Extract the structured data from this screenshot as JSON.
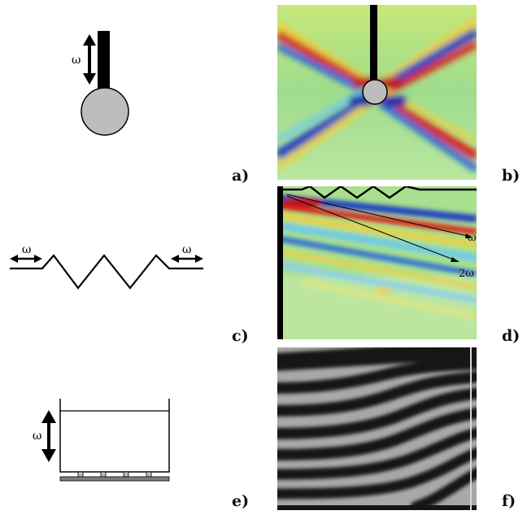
{
  "labels": {
    "a": "a)",
    "b": "b)",
    "c": "c)",
    "d": "d)",
    "e": "e)",
    "f": "f)"
  },
  "symbols": {
    "omega_a": "ω",
    "omega_c_left": "ω",
    "omega_c_right": "ω",
    "omega_e": "ω",
    "ray_omega": "ω",
    "ray_2omega": "2ω"
  },
  "colors": {
    "background_field": "#b3e58c",
    "positive": "#d52b1e",
    "negative": "#1f3fbf",
    "cylinder_fill": "#bdbdbd",
    "stripe_dark": "#151515",
    "stripe_light": "#a8a8a8"
  }
}
